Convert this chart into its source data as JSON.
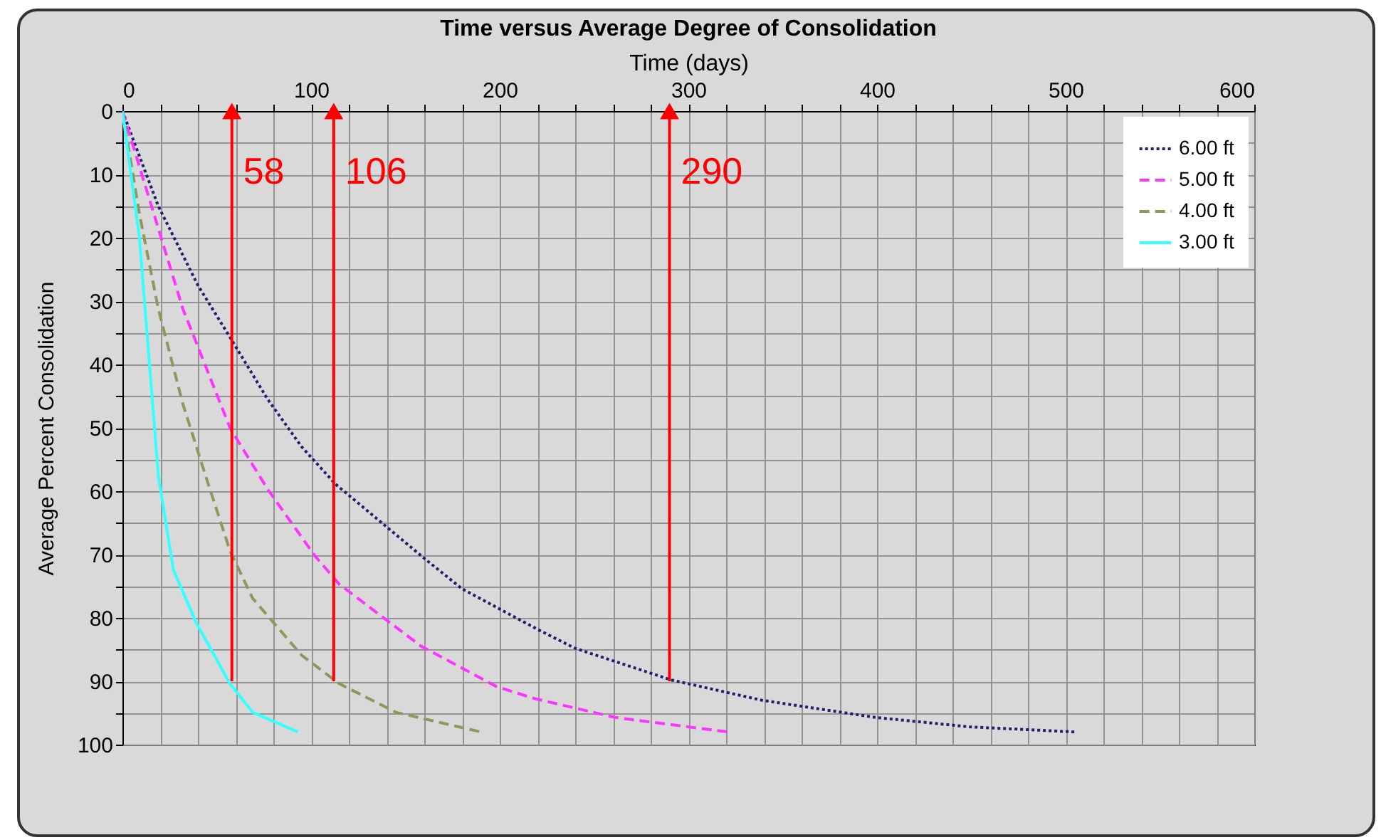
{
  "chart_data": {
    "type": "line",
    "title": "Time versus Average Degree of Consolidation",
    "xlabel": "Time (days)",
    "ylabel": "Average Percent Consolidation",
    "xlim": [
      0,
      600
    ],
    "ylim": [
      100,
      0
    ],
    "xticks": [
      0,
      {
        "value": 20,
        "label": null
      },
      {
        "value": 40,
        "label": null
      },
      {
        "value": 60,
        "label": null
      },
      {
        "value": 80,
        "label": null
      },
      100,
      {
        "value": 120,
        "label": null
      },
      {
        "value": 140,
        "label": null
      },
      {
        "value": 160,
        "label": null
      },
      {
        "value": 180,
        "label": null
      },
      200,
      {
        "value": 220,
        "label": null
      },
      {
        "value": 240,
        "label": null
      },
      {
        "value": 260,
        "label": null
      },
      {
        "value": 280,
        "label": null
      },
      300,
      {
        "value": 320,
        "label": null
      },
      {
        "value": 340,
        "label": null
      },
      {
        "value": 360,
        "label": null
      },
      {
        "value": 380,
        "label": null
      },
      400,
      {
        "value": 420,
        "label": null
      },
      {
        "value": 440,
        "label": null
      },
      {
        "value": 460,
        "label": null
      },
      {
        "value": 480,
        "label": null
      },
      500,
      {
        "value": 520,
        "label": null
      },
      {
        "value": 540,
        "label": null
      },
      {
        "value": 560,
        "label": null
      },
      {
        "value": 580,
        "label": null
      },
      600
    ],
    "yticks": [
      0,
      {
        "value": 5,
        "label": null
      },
      10,
      {
        "value": 15,
        "label": null
      },
      20,
      {
        "value": 25,
        "label": null
      },
      30,
      {
        "value": 35,
        "label": null
      },
      40,
      {
        "value": 45,
        "label": null
      },
      50,
      {
        "value": 55,
        "label": null
      },
      60,
      {
        "value": 65,
        "label": null
      },
      70,
      {
        "value": 75,
        "label": null
      },
      80,
      {
        "value": 85,
        "label": null
      },
      90,
      {
        "value": 95,
        "label": null
      },
      100
    ],
    "grid": true,
    "legend": "top right",
    "series": [
      {
        "name": "6.00 ft",
        "color": "#1f1f6e",
        "line_style": "dotted",
        "x": [
          0,
          19,
          40,
          57,
          77,
          95,
          113,
          160,
          180,
          220,
          240,
          291,
          339,
          399,
          449,
          505
        ],
        "values": [
          0,
          15,
          27.5,
          35.7,
          45.5,
          53,
          58.9,
          70.6,
          75.4,
          81.8,
          84.8,
          89.8,
          93,
          95.7,
          97.2,
          98
        ]
      },
      {
        "name": "5.00 ft",
        "color": "#ff33ff",
        "line_style": "dashed",
        "x": [
          0,
          19,
          32,
          44,
          57,
          77,
          102,
          115,
          158,
          198,
          218,
          261,
          321
        ],
        "values": [
          0,
          18.5,
          31.2,
          40.2,
          50,
          59.7,
          70.2,
          74.7,
          84.4,
          90.8,
          92.7,
          95.7,
          98
        ]
      },
      {
        "name": "4.00 ft",
        "color": "#8b9a5b",
        "line_style": "dashed",
        "x": [
          0,
          9,
          19,
          32,
          44,
          57,
          69,
          95,
          115,
          145,
          190
        ],
        "values": [
          0,
          16.2,
          31.2,
          46.2,
          57.5,
          69.4,
          76.9,
          85.9,
          90.4,
          94.9,
          98
        ]
      },
      {
        "name": "3.00 ft",
        "color": "#33ffff",
        "line_style": "solid",
        "x": [
          0,
          9,
          14,
          19,
          27,
          39,
          57,
          69,
          93
        ],
        "values": [
          0,
          20,
          38.7,
          57.5,
          72.4,
          80.7,
          90.4,
          94.9,
          98
        ]
      }
    ],
    "annotations": [
      {
        "text": "58",
        "x": 58,
        "y": 90
      },
      {
        "text": "106",
        "x": 112,
        "y": 90
      },
      {
        "text": "290",
        "x": 290,
        "y": 90
      }
    ]
  }
}
